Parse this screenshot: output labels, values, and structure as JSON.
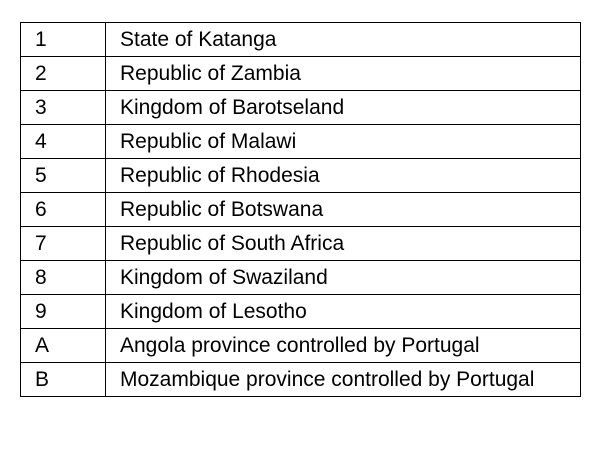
{
  "table": {
    "rows": [
      [
        "1",
        "State of Katanga"
      ],
      [
        "2",
        "Republic of Zambia"
      ],
      [
        "3",
        "Kingdom of Barotseland"
      ],
      [
        "4",
        "Republic of Malawi"
      ],
      [
        "5",
        "Republic of Rhodesia"
      ],
      [
        "6",
        "Republic of Botswana"
      ],
      [
        "7",
        "Republic of South Africa"
      ],
      [
        "8",
        "Kingdom of Swaziland"
      ],
      [
        "9",
        "Kingdom of Lesotho"
      ],
      [
        "A",
        "Angola province controlled by Portugal"
      ],
      [
        "B",
        "Mozambique province controlled by Portugal"
      ]
    ]
  }
}
